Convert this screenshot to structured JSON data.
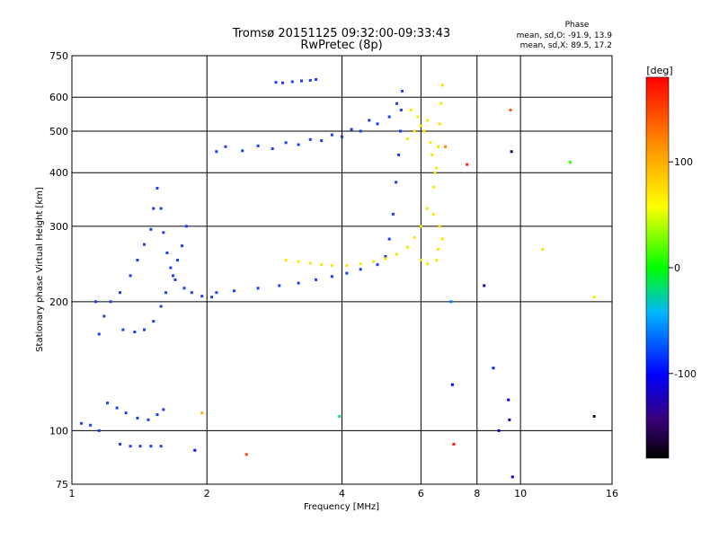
{
  "chart_data": {
    "type": "scatter",
    "title": "Tromsø 20151125 09:32:00-09:33:43",
    "subtitle": "RwPretec (8p)",
    "xlabel": "Frequency [MHz]",
    "ylabel": "Stationary phase Virtual Height [km]",
    "xscale": "log",
    "yscale": "log",
    "xlim": [
      1,
      16
    ],
    "ylim": [
      75,
      750
    ],
    "xticks": [
      1,
      2,
      4,
      6,
      8,
      10,
      16
    ],
    "xgrid": [
      2,
      4,
      6,
      8,
      10
    ],
    "yticks": [
      75,
      100,
      200,
      300,
      400,
      500,
      600,
      750
    ],
    "ygrid": [
      100,
      200,
      300,
      400,
      500,
      600
    ],
    "grid": true,
    "phase_box": {
      "title": "Phase",
      "line1": "mean, sd,O: -91.9, 13.9",
      "line2": "mean, sd,X:  89.5, 17.2"
    },
    "colorbar": {
      "label": "[deg]",
      "range": [
        -180,
        180
      ],
      "ticks": [
        -100,
        0,
        100
      ]
    },
    "colors": {
      "o_mode": "#1e3cf0",
      "x_mode": "#f5ea00",
      "grid": "#000000"
    },
    "series": [
      {
        "mode": "O",
        "phase": -92,
        "points": [
          [
            1.05,
            104
          ],
          [
            1.1,
            103
          ],
          [
            1.15,
            100
          ],
          [
            1.2,
            116
          ],
          [
            1.26,
            113
          ],
          [
            1.32,
            110
          ],
          [
            1.4,
            107
          ],
          [
            1.48,
            106
          ],
          [
            1.55,
            109
          ],
          [
            1.6,
            112
          ],
          [
            1.28,
            93
          ],
          [
            1.35,
            92
          ],
          [
            1.42,
            92
          ],
          [
            1.5,
            92
          ],
          [
            1.58,
            92
          ],
          [
            1.13,
            200
          ],
          [
            1.15,
            168
          ],
          [
            1.18,
            185
          ],
          [
            1.22,
            200
          ],
          [
            1.28,
            210
          ],
          [
            1.35,
            230
          ],
          [
            1.4,
            250
          ],
          [
            1.45,
            272
          ],
          [
            1.5,
            295
          ],
          [
            1.52,
            330
          ],
          [
            1.55,
            368
          ],
          [
            1.58,
            330
          ],
          [
            1.6,
            290
          ],
          [
            1.63,
            260
          ],
          [
            1.66,
            240
          ],
          [
            1.7,
            225
          ],
          [
            1.78,
            215
          ],
          [
            1.85,
            210
          ],
          [
            1.95,
            206
          ],
          [
            2.05,
            205
          ],
          [
            1.3,
            172
          ],
          [
            1.38,
            170
          ],
          [
            1.45,
            172
          ],
          [
            1.52,
            180
          ],
          [
            1.58,
            195
          ],
          [
            1.62,
            210
          ],
          [
            1.68,
            230
          ],
          [
            1.72,
            250
          ],
          [
            1.76,
            270
          ],
          [
            1.8,
            300
          ],
          [
            2.1,
            210
          ],
          [
            2.3,
            212
          ],
          [
            2.6,
            215
          ],
          [
            2.9,
            218
          ],
          [
            3.2,
            221
          ],
          [
            3.5,
            225
          ],
          [
            3.8,
            229
          ],
          [
            4.1,
            233
          ],
          [
            4.4,
            238
          ],
          [
            4.8,
            244
          ],
          [
            5.0,
            255
          ],
          [
            5.1,
            280
          ],
          [
            5.2,
            320
          ],
          [
            5.28,
            380
          ],
          [
            5.35,
            440
          ],
          [
            5.4,
            500
          ],
          [
            5.42,
            560
          ],
          [
            5.45,
            620
          ],
          [
            5.3,
            580
          ],
          [
            5.1,
            540
          ],
          [
            4.8,
            520
          ],
          [
            4.4,
            500
          ],
          [
            4.0,
            485
          ],
          [
            3.6,
            475
          ],
          [
            3.2,
            465
          ],
          [
            2.8,
            455
          ],
          [
            2.4,
            450
          ],
          [
            2.1,
            448
          ],
          [
            2.2,
            460
          ],
          [
            2.6,
            462
          ],
          [
            3.0,
            470
          ],
          [
            3.4,
            478
          ],
          [
            3.8,
            490
          ],
          [
            4.2,
            505
          ],
          [
            4.6,
            530
          ],
          [
            2.85,
            650
          ],
          [
            2.95,
            648
          ],
          [
            3.1,
            652
          ],
          [
            3.25,
            655
          ],
          [
            3.4,
            657
          ],
          [
            3.5,
            660
          ]
        ]
      },
      {
        "mode": "X",
        "phase": 89,
        "points": [
          [
            3.0,
            250
          ],
          [
            3.2,
            248
          ],
          [
            3.4,
            246
          ],
          [
            3.6,
            244
          ],
          [
            3.8,
            243
          ],
          [
            4.1,
            243
          ],
          [
            4.4,
            245
          ],
          [
            4.7,
            248
          ],
          [
            5.0,
            252
          ],
          [
            5.3,
            258
          ],
          [
            5.6,
            268
          ],
          [
            5.8,
            282
          ],
          [
            6.0,
            300
          ],
          [
            6.2,
            330
          ],
          [
            6.4,
            370
          ],
          [
            6.5,
            410
          ],
          [
            6.55,
            460
          ],
          [
            6.6,
            520
          ],
          [
            6.65,
            580
          ],
          [
            6.7,
            640
          ],
          [
            5.6,
            480
          ],
          [
            5.8,
            500
          ],
          [
            6.0,
            515
          ],
          [
            6.2,
            530
          ],
          [
            5.7,
            560
          ],
          [
            5.9,
            540
          ],
          [
            6.1,
            500
          ],
          [
            6.3,
            470
          ],
          [
            6.35,
            440
          ],
          [
            6.45,
            400
          ],
          [
            6.4,
            320
          ],
          [
            6.6,
            300
          ],
          [
            6.7,
            280
          ],
          [
            6.0,
            250
          ],
          [
            6.2,
            245
          ],
          [
            6.5,
            250
          ],
          [
            6.55,
            265
          ],
          [
            11.2,
            265
          ],
          [
            14.6,
            205
          ]
        ]
      }
    ],
    "other_points": [
      [
        1.88,
        90
      ],
      [
        1.95,
        110
      ],
      [
        2.45,
        88
      ],
      [
        3.95,
        108
      ],
      [
        7.6,
        418
      ],
      [
        8.3,
        218
      ],
      [
        8.7,
        140
      ],
      [
        8.95,
        100
      ],
      [
        9.4,
        118
      ],
      [
        9.45,
        106
      ],
      [
        9.5,
        560
      ],
      [
        9.55,
        448
      ],
      [
        9.6,
        78
      ],
      [
        12.9,
        423
      ],
      [
        14.6,
        108
      ],
      [
        6.8,
        460
      ],
      [
        7.0,
        200
      ],
      [
        7.1,
        93
      ],
      [
        7.05,
        128
      ]
    ]
  }
}
